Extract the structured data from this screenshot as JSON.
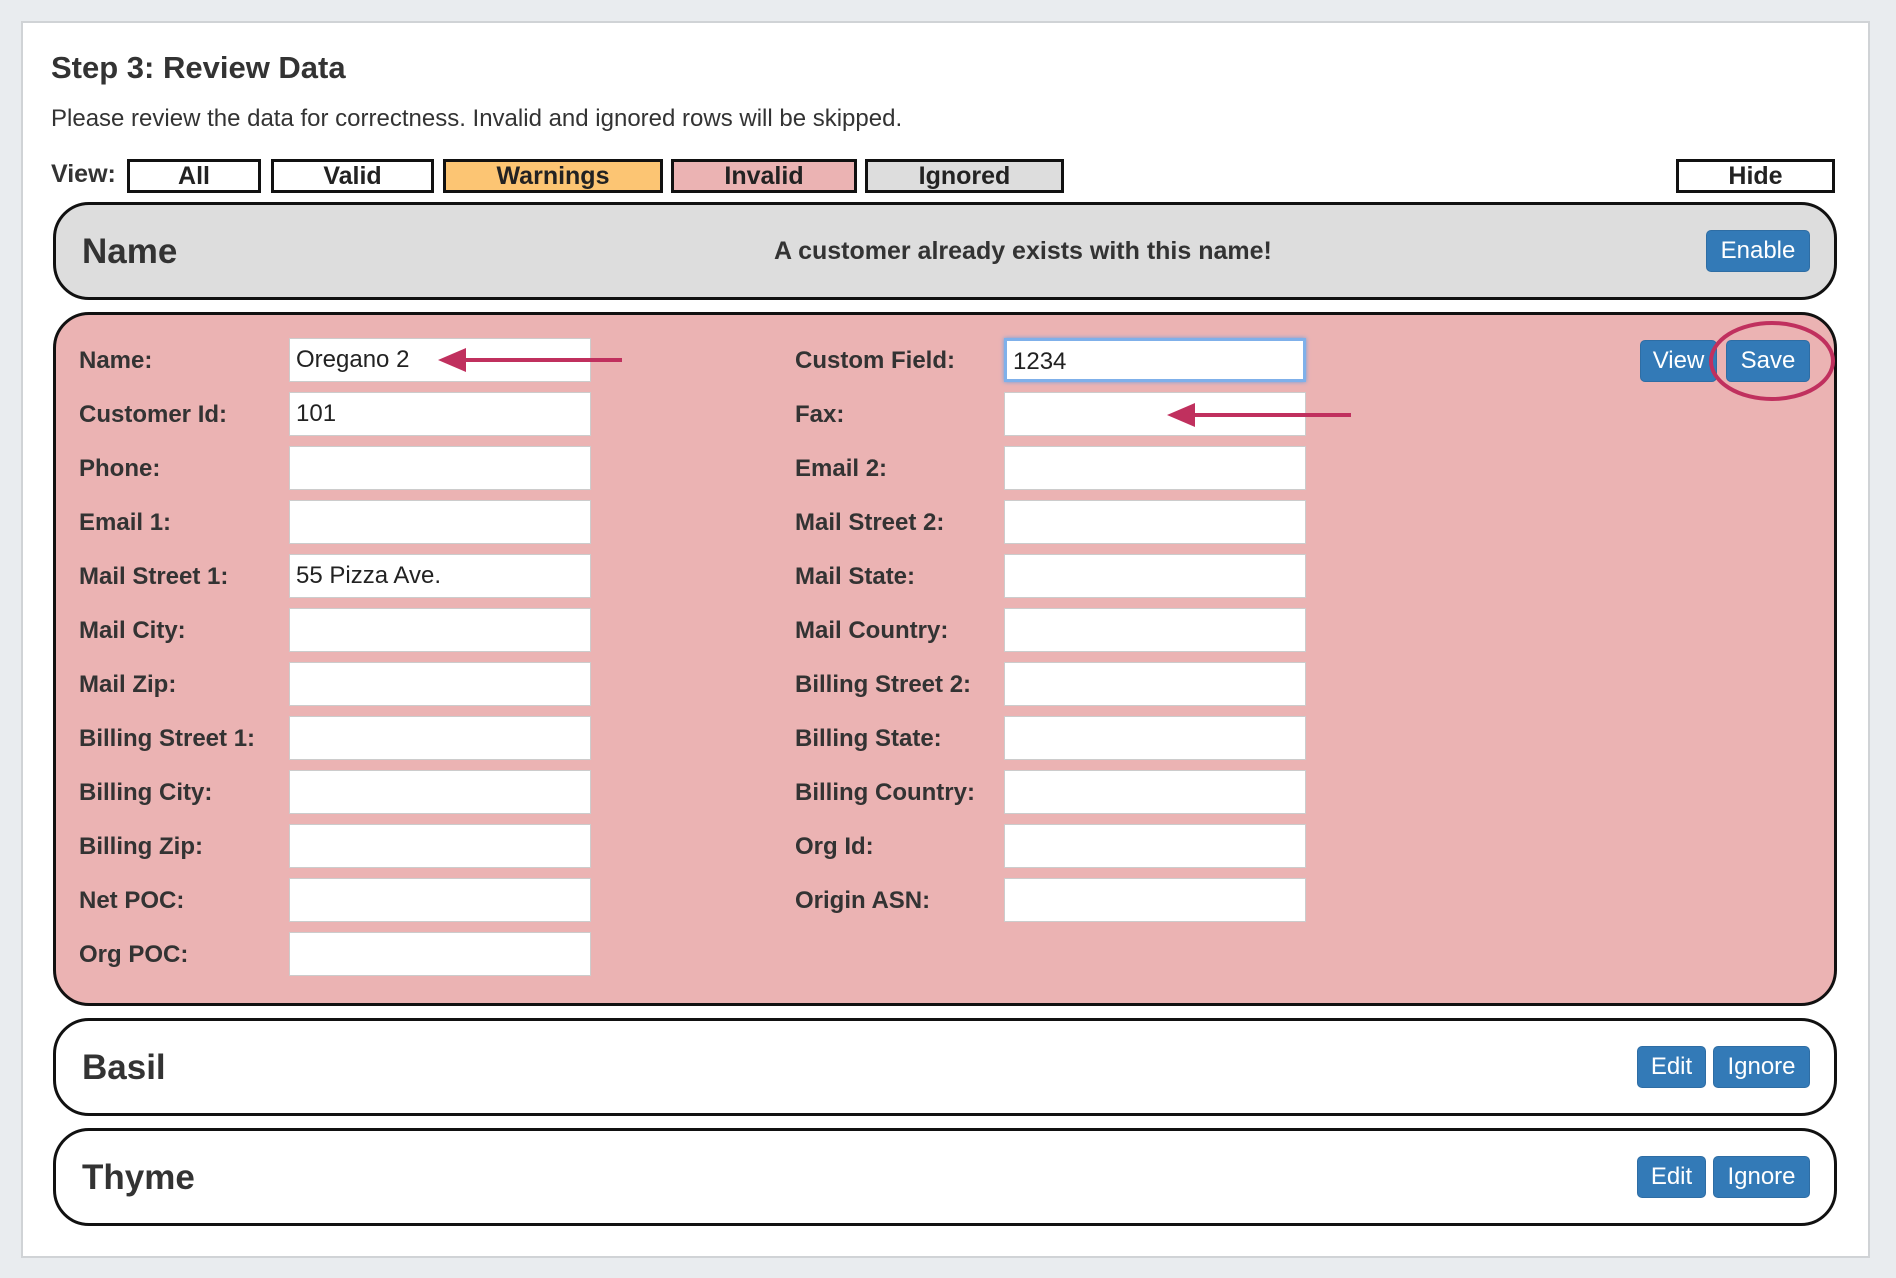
{
  "title": "Step 3: Review Data",
  "subtitle": "Please review the data for correctness. Invalid and ignored rows will be skipped.",
  "view": {
    "label": "View:",
    "filters": [
      {
        "label": "All",
        "color": "#ffffff"
      },
      {
        "label": "Valid",
        "color": "#ffffff"
      },
      {
        "label": "Warnings",
        "color": "#fcc573"
      },
      {
        "label": "Invalid",
        "color": "#ebb3b3"
      },
      {
        "label": "Ignored",
        "color": "#dddddd"
      }
    ],
    "hide": "Hide"
  },
  "ignored_card": {
    "title": "Name",
    "message": "A customer already exists with this name!",
    "enable": "Enable"
  },
  "invalid_card": {
    "view": "View",
    "save": "Save",
    "left": [
      {
        "label": "Name:",
        "value": "Oregano 2"
      },
      {
        "label": "Customer Id:",
        "value": "101"
      },
      {
        "label": "Phone:",
        "value": ""
      },
      {
        "label": "Email 1:",
        "value": ""
      },
      {
        "label": "Mail Street 1:",
        "value": "55 Pizza Ave."
      },
      {
        "label": "Mail City:",
        "value": ""
      },
      {
        "label": "Mail Zip:",
        "value": ""
      },
      {
        "label": "Billing Street 1:",
        "value": ""
      },
      {
        "label": "Billing City:",
        "value": ""
      },
      {
        "label": "Billing Zip:",
        "value": ""
      },
      {
        "label": "Net POC:",
        "value": ""
      },
      {
        "label": "Org POC:",
        "value": ""
      }
    ],
    "right": [
      {
        "label": "Custom Field:",
        "value": "1234"
      },
      {
        "label": "Fax:",
        "value": ""
      },
      {
        "label": "Email 2:",
        "value": ""
      },
      {
        "label": "Mail Street 2:",
        "value": ""
      },
      {
        "label": "Mail State:",
        "value": ""
      },
      {
        "label": "Mail Country:",
        "value": ""
      },
      {
        "label": "Billing Street 2:",
        "value": ""
      },
      {
        "label": "Billing State:",
        "value": ""
      },
      {
        "label": "Billing Country:",
        "value": ""
      },
      {
        "label": "Org Id:",
        "value": ""
      },
      {
        "label": "Origin ASN:",
        "value": ""
      }
    ]
  },
  "rows": [
    {
      "title": "Basil",
      "edit": "Edit",
      "ignore": "Ignore"
    },
    {
      "title": "Thyme",
      "edit": "Edit",
      "ignore": "Ignore"
    }
  ],
  "annotation_color": "#c0305e"
}
